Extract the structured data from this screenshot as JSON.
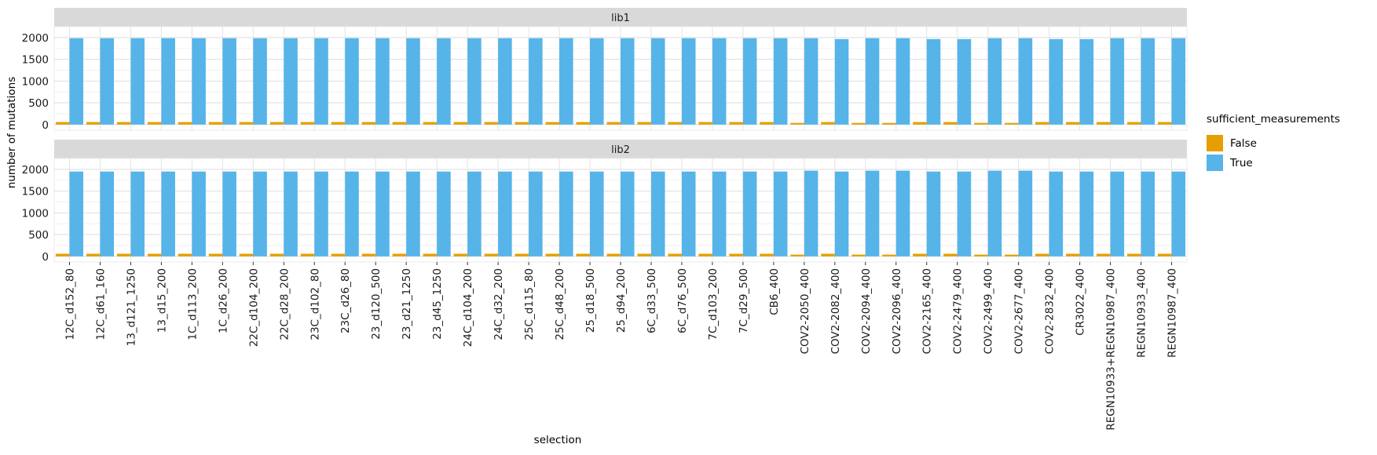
{
  "chart_data": {
    "type": "bar",
    "xlabel": "selection",
    "ylabel": "number of mutations",
    "ylim": [
      0,
      2000
    ],
    "yticks": [
      0,
      500,
      1000,
      1500,
      2000
    ],
    "grid": true,
    "legend": {
      "title": "sufficient_measurements",
      "position": "right",
      "entries": [
        "False",
        "True"
      ]
    },
    "colors": {
      "False": "#E69F00",
      "True": "#56B4E9"
    },
    "categories": [
      "12C_d152_80",
      "12C_d61_160",
      "13_d121_1250",
      "13_d15_200",
      "1C_d113_200",
      "1C_d26_200",
      "22C_d104_200",
      "22C_d28_200",
      "23C_d102_80",
      "23C_d26_80",
      "23_d120_500",
      "23_d21_1250",
      "23_d45_1250",
      "24C_d104_200",
      "24C_d32_200",
      "25C_d115_80",
      "25C_d48_200",
      "25_d18_500",
      "25_d94_200",
      "6C_d33_500",
      "6C_d76_500",
      "7C_d103_200",
      "7C_d29_500",
      "CB6_400",
      "COV2-2050_400",
      "COV2-2082_400",
      "COV2-2094_400",
      "COV2-2096_400",
      "COV2-2165_400",
      "COV2-2479_400",
      "COV2-2499_400",
      "COV2-2677_400",
      "COV2-2832_400",
      "CR3022_400",
      "REGN10933+REGN10987_400",
      "REGN10933_400",
      "REGN10987_400"
    ],
    "panels": [
      {
        "label": "lib1",
        "series": [
          {
            "name": "False",
            "values": [
              58,
              58,
              58,
              58,
              58,
              58,
              58,
              58,
              58,
              58,
              58,
              58,
              58,
              58,
              58,
              58,
              58,
              58,
              58,
              58,
              58,
              58,
              58,
              58,
              38,
              58,
              38,
              38,
              58,
              58,
              38,
              38,
              58,
              58,
              58,
              58,
              58
            ]
          },
          {
            "name": "True",
            "values": [
              1985,
              1985,
              1985,
              1985,
              1985,
              1985,
              1985,
              1985,
              1985,
              1985,
              1985,
              1985,
              1985,
              1985,
              1985,
              1985,
              1985,
              1985,
              1985,
              1985,
              1985,
              1985,
              1985,
              1985,
              1985,
              1965,
              1985,
              1985,
              1965,
              1965,
              1985,
              1985,
              1965,
              1965,
              1985,
              1985,
              1985
            ]
          }
        ]
      },
      {
        "label": "lib2",
        "series": [
          {
            "name": "False",
            "values": [
              60,
              60,
              60,
              60,
              60,
              60,
              60,
              60,
              60,
              60,
              60,
              60,
              60,
              60,
              60,
              60,
              60,
              60,
              60,
              60,
              60,
              60,
              60,
              60,
              40,
              60,
              40,
              40,
              60,
              60,
              40,
              40,
              60,
              60,
              60,
              60,
              60
            ]
          },
          {
            "name": "True",
            "values": [
              1950,
              1950,
              1950,
              1950,
              1950,
              1950,
              1950,
              1950,
              1950,
              1950,
              1950,
              1950,
              1950,
              1950,
              1950,
              1950,
              1950,
              1950,
              1950,
              1950,
              1950,
              1950,
              1950,
              1950,
              1970,
              1950,
              1970,
              1970,
              1950,
              1950,
              1970,
              1970,
              1950,
              1950,
              1950,
              1950,
              1950
            ]
          }
        ]
      }
    ]
  }
}
